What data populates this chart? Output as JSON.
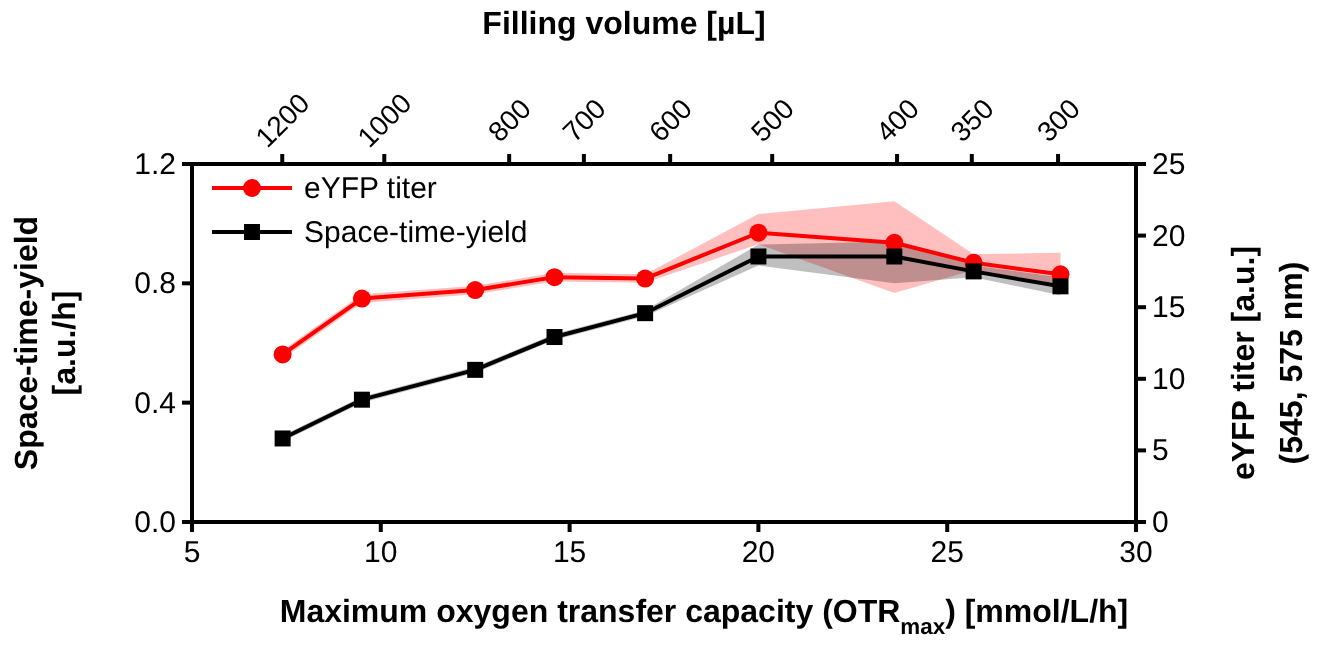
{
  "chart_data": {
    "type": "line",
    "xlabel": "Maximum oxygen transfer capacity (OTR$_{max}$)    [mmol/L/h]",
    "ylabel": "Space-time-yield\n[a.u./h]",
    "y2label": "eYFP titer    [a.u.]\n(545, 575 nm)",
    "x2label": "Filling volume   [µL]",
    "x": [
      7.4,
      9.5,
      12.5,
      14.6,
      17.0,
      20.0,
      23.6,
      25.7,
      28.0
    ],
    "xlim": [
      5,
      30
    ],
    "xticks": [
      5,
      10,
      15,
      20,
      25,
      30
    ],
    "ylim": [
      0,
      1.2
    ],
    "yticks": [
      {
        "value": 0,
        "label": "0.0"
      },
      {
        "value": 0.4,
        "label": "0.4"
      },
      {
        "value": 0.8,
        "label": "0.8"
      },
      {
        "value": 1.2,
        "label": "1.2"
      }
    ],
    "y2lim": [
      0,
      25
    ],
    "y2ticks": [
      0,
      5,
      10,
      15,
      20,
      25
    ],
    "x2lim": [
      1410,
      261
    ],
    "x2ticks": [
      1200,
      1000,
      800,
      700,
      600,
      500,
      400,
      350,
      300
    ],
    "log": "x2",
    "series": [
      {
        "name": "eYFP titer",
        "color": "#ff0000",
        "axis": "y2",
        "marker": "circle",
        "values": [
          11.7,
          15.6,
          16.2,
          17.1,
          17.0,
          20.2,
          19.5,
          18.1,
          17.3
        ],
        "lower": [
          11.4,
          15.3,
          15.9,
          16.8,
          16.7,
          19.4,
          16.0,
          17.6,
          16.6
        ],
        "upper": [
          12.0,
          15.9,
          16.5,
          17.4,
          17.3,
          21.5,
          22.4,
          18.7,
          18.8
        ]
      },
      {
        "name": "Space-time-yield",
        "color": "#000000",
        "axis": "y",
        "marker": "square",
        "values": [
          0.28,
          0.41,
          0.51,
          0.62,
          0.7,
          0.89,
          0.89,
          0.84,
          0.79
        ],
        "lower": [
          0.27,
          0.4,
          0.5,
          0.61,
          0.69,
          0.86,
          0.8,
          0.82,
          0.76
        ],
        "upper": [
          0.29,
          0.42,
          0.52,
          0.63,
          0.71,
          0.93,
          0.94,
          0.86,
          0.82
        ]
      }
    ],
    "legend": "top left",
    "grid": false,
    "line_style": "solid"
  }
}
